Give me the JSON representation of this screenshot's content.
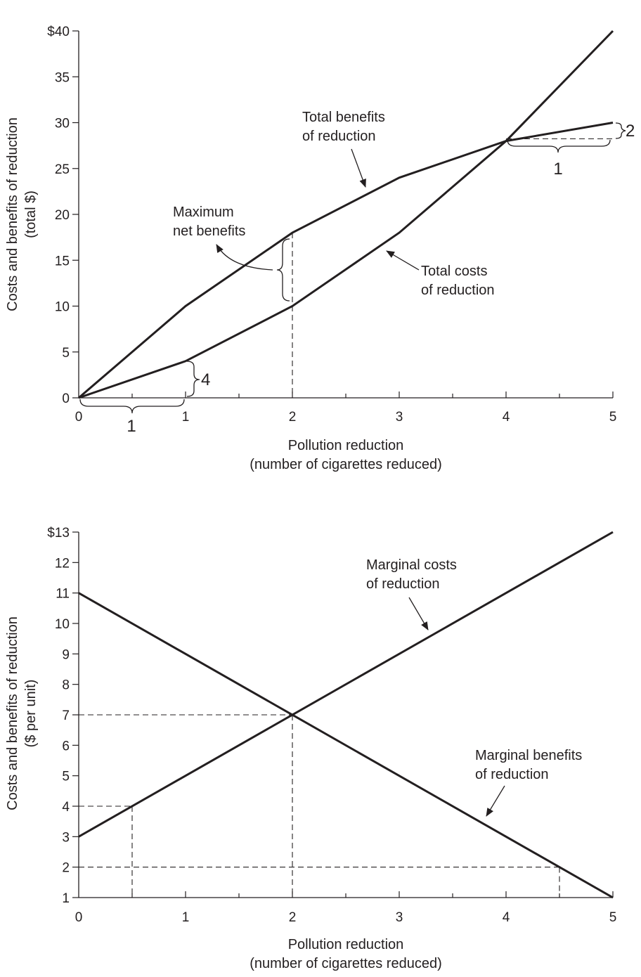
{
  "chart_data": [
    {
      "type": "line",
      "xlabel": [
        "Pollution reduction",
        "(number of cigarettes reduced)"
      ],
      "ylabel": [
        "Costs and benefits of reduction",
        "(total $)"
      ],
      "xlim": [
        0,
        5
      ],
      "ylim": [
        0,
        40
      ],
      "x_ticks": [
        "0",
        "1",
        "2",
        "3",
        "4",
        "5"
      ],
      "y_ticks": [
        "0",
        "5",
        "10",
        "15",
        "20",
        "25",
        "30",
        "35",
        "$40"
      ],
      "series": [
        {
          "x": [
            0,
            1,
            2,
            3,
            4,
            5
          ],
          "values": [
            0,
            10,
            18,
            24,
            28,
            30
          ]
        },
        {
          "x": [
            0,
            1,
            2,
            3,
            4,
            5
          ],
          "values": [
            0,
            4,
            10,
            18,
            28,
            40
          ]
        }
      ],
      "annotations": {
        "total_benefits": [
          "Total benefits",
          "of reduction"
        ],
        "total_costs": [
          "Total costs",
          "of reduction"
        ],
        "max_net": [
          "Maximum",
          "net benefits"
        ],
        "run_left": "1",
        "rise_left": "4",
        "run_right": "1",
        "rise_right": "2"
      }
    },
    {
      "type": "line",
      "xlabel": [
        "Pollution reduction",
        "(number of cigarettes reduced)"
      ],
      "ylabel": [
        "Costs and benefits of reduction",
        "($ per unit)"
      ],
      "xlim": [
        0,
        5
      ],
      "ylim": [
        1,
        13
      ],
      "x_ticks": [
        "0",
        "1",
        "2",
        "3",
        "4",
        "5"
      ],
      "y_ticks": [
        "1",
        "2",
        "3",
        "4",
        "5",
        "6",
        "7",
        "8",
        "9",
        "10",
        "11",
        "12",
        "$13"
      ],
      "series": [
        {
          "x": [
            0,
            5
          ],
          "values": [
            3,
            13
          ]
        },
        {
          "x": [
            0,
            5
          ],
          "values": [
            11,
            1
          ]
        }
      ],
      "reference_points": [
        {
          "x": 0.5,
          "y": 4
        },
        {
          "x": 2,
          "y": 7
        },
        {
          "x": 4.5,
          "y": 2
        }
      ],
      "annotations": {
        "marginal_costs": [
          "Marginal costs",
          "of reduction"
        ],
        "marginal_benefits": [
          "Marginal benefits",
          "of reduction"
        ]
      }
    }
  ]
}
